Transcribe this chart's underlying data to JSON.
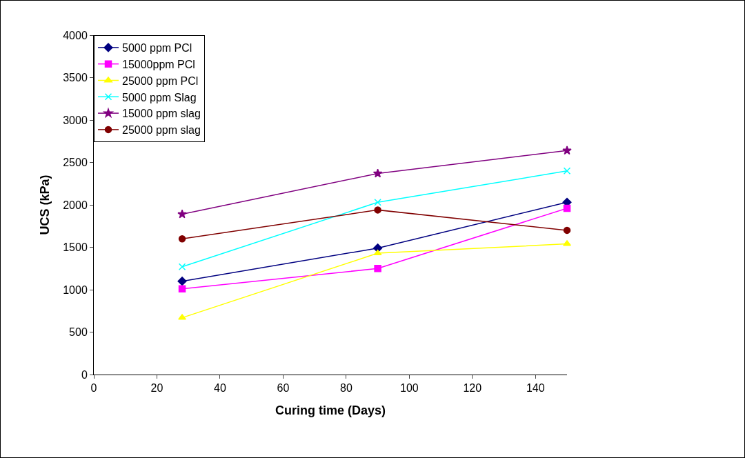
{
  "chart_data": {
    "type": "line",
    "xlabel": "Curing time (Days)",
    "ylabel": "UCS (kPa)",
    "x": [
      28,
      90,
      150
    ],
    "xlim": [
      0,
      150
    ],
    "xticks": [
      0,
      20,
      40,
      60,
      80,
      100,
      120,
      140
    ],
    "ylim": [
      0,
      4000
    ],
    "yticks": [
      0,
      500,
      1000,
      1500,
      2000,
      2500,
      3000,
      3500,
      4000
    ],
    "grid": false,
    "legend": "top left",
    "line_style": "solid",
    "series": [
      {
        "name": "5000 ppm PCl",
        "color": "#000080",
        "marker": "diamond",
        "values": [
          1100,
          1490,
          2030
        ]
      },
      {
        "name": "15000ppm PCl",
        "color": "#ff00ff",
        "marker": "square",
        "values": [
          1010,
          1250,
          1960
        ]
      },
      {
        "name": "25000 ppm PCl",
        "color": "#ffff00",
        "marker": "triangle",
        "values": [
          670,
          1430,
          1540
        ]
      },
      {
        "name": "5000 ppm Slag",
        "color": "#00ffff",
        "marker": "cross",
        "values": [
          1270,
          2030,
          2400
        ]
      },
      {
        "name": "15000 ppm slag",
        "color": "#800080",
        "marker": "star",
        "values": [
          1890,
          2370,
          2640
        ]
      },
      {
        "name": "25000 ppm slag",
        "color": "#800000",
        "marker": "circle",
        "values": [
          1600,
          1940,
          1700
        ]
      }
    ]
  }
}
